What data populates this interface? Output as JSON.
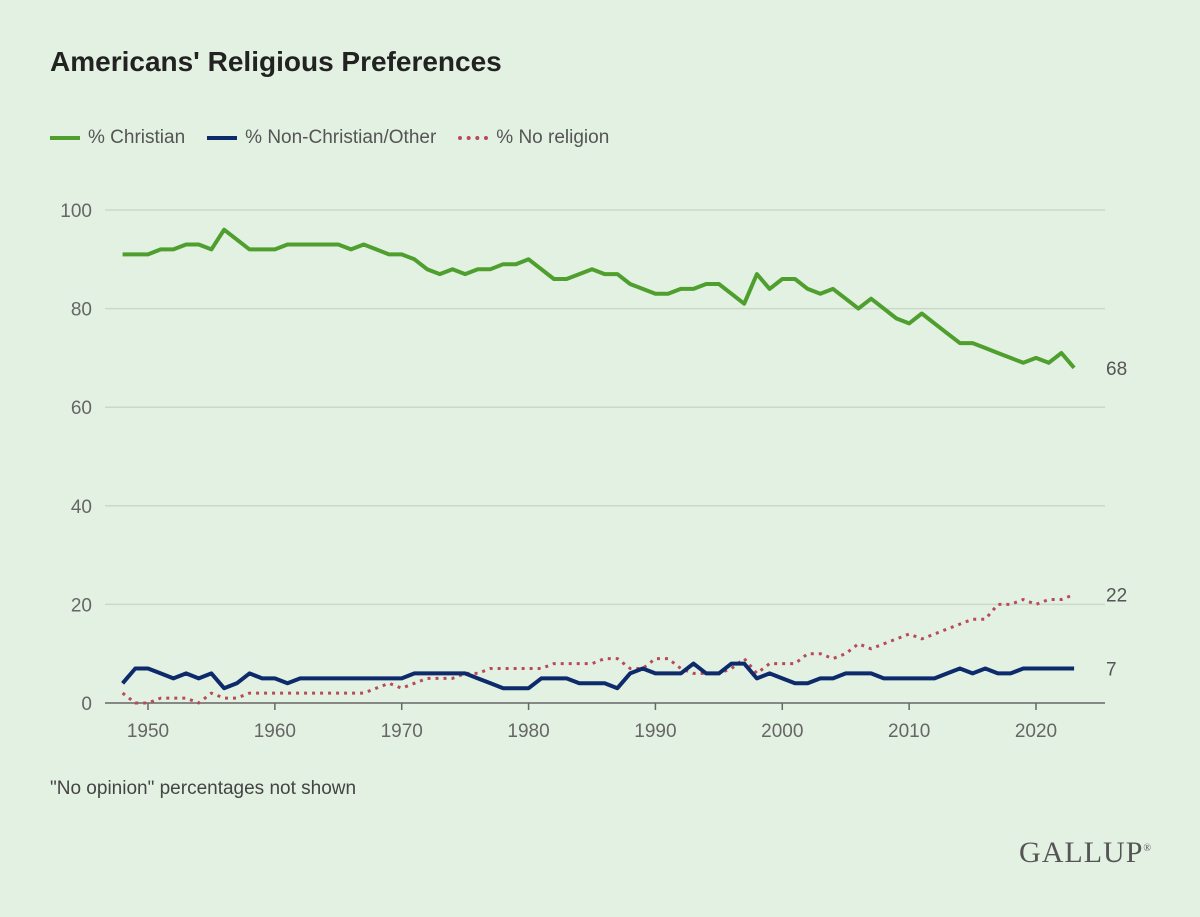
{
  "chart_data": {
    "type": "line",
    "title": "Americans' Religious Preferences",
    "note": "\"No opinion\" percentages not shown",
    "source_logo": "GALLUP",
    "xlim": [
      1948,
      2023
    ],
    "ylim": [
      0,
      100
    ],
    "x_ticks": [
      1950,
      1960,
      1970,
      1980,
      1990,
      2000,
      2010,
      2020
    ],
    "y_ticks": [
      0,
      20,
      40,
      60,
      80,
      100
    ],
    "grid": "horizontal",
    "legend_placement": "top-left",
    "x": [
      1948,
      1949,
      1950,
      1951,
      1952,
      1953,
      1954,
      1955,
      1956,
      1957,
      1958,
      1959,
      1960,
      1961,
      1962,
      1963,
      1964,
      1965,
      1966,
      1967,
      1968,
      1969,
      1970,
      1971,
      1972,
      1973,
      1974,
      1975,
      1976,
      1977,
      1978,
      1979,
      1980,
      1981,
      1982,
      1983,
      1984,
      1985,
      1986,
      1987,
      1988,
      1989,
      1990,
      1991,
      1992,
      1993,
      1994,
      1995,
      1996,
      1997,
      1998,
      1999,
      2000,
      2001,
      2002,
      2003,
      2004,
      2005,
      2006,
      2007,
      2008,
      2009,
      2010,
      2011,
      2012,
      2013,
      2014,
      2015,
      2016,
      2017,
      2018,
      2019,
      2020,
      2021,
      2022,
      2023
    ],
    "series": [
      {
        "name": "% Christian",
        "color": "#4f9f2f",
        "style": "solid",
        "end_label": "68",
        "values": [
          91,
          91,
          91,
          92,
          92,
          93,
          93,
          92,
          96,
          94,
          92,
          92,
          92,
          93,
          93,
          93,
          93,
          93,
          92,
          93,
          92,
          91,
          91,
          90,
          88,
          87,
          88,
          87,
          88,
          88,
          89,
          89,
          90,
          88,
          86,
          86,
          87,
          88,
          87,
          87,
          85,
          84,
          83,
          83,
          84,
          84,
          85,
          85,
          83,
          81,
          87,
          84,
          86,
          86,
          84,
          83,
          84,
          82,
          80,
          82,
          80,
          78,
          77,
          79,
          77,
          75,
          73,
          73,
          72,
          71,
          70,
          69,
          70,
          69,
          71,
          68
        ]
      },
      {
        "name": "% Non-Christian/Other",
        "color": "#0d2a6b",
        "style": "solid",
        "end_label": "7",
        "values": [
          4,
          7,
          7,
          6,
          5,
          6,
          5,
          6,
          3,
          4,
          6,
          5,
          5,
          4,
          5,
          5,
          5,
          5,
          5,
          5,
          5,
          5,
          5,
          6,
          6,
          6,
          6,
          6,
          5,
          4,
          3,
          3,
          3,
          5,
          5,
          5,
          4,
          4,
          4,
          3,
          6,
          7,
          6,
          6,
          6,
          8,
          6,
          6,
          8,
          8,
          5,
          6,
          5,
          4,
          4,
          5,
          5,
          6,
          6,
          6,
          5,
          5,
          5,
          5,
          5,
          6,
          7,
          6,
          7,
          6,
          6,
          7,
          7,
          7,
          7,
          7
        ]
      },
      {
        "name": "% No religion",
        "color": "#b84a5a",
        "style": "dotted",
        "end_label": "22",
        "values": [
          2,
          0,
          0,
          1,
          1,
          1,
          0,
          2,
          1,
          1,
          2,
          2,
          2,
          2,
          2,
          2,
          2,
          2,
          2,
          2,
          3,
          4,
          3,
          4,
          5,
          5,
          5,
          6,
          6,
          7,
          7,
          7,
          7,
          7,
          8,
          8,
          8,
          8,
          9,
          9,
          7,
          7,
          9,
          9,
          7,
          6,
          6,
          6,
          7,
          9,
          6,
          8,
          8,
          8,
          10,
          10,
          9,
          10,
          12,
          11,
          12,
          13,
          14,
          13,
          14,
          15,
          16,
          17,
          17,
          20,
          20,
          21,
          20,
          21,
          21,
          22
        ]
      }
    ]
  }
}
